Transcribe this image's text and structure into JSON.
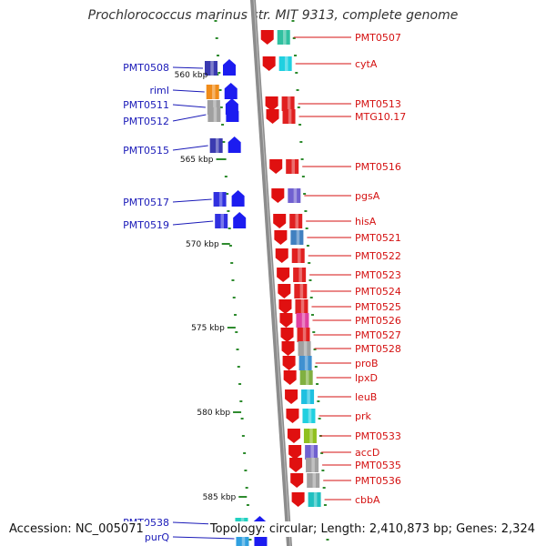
{
  "title": "Prochlorococcus marinus str. MIT 9313, complete genome",
  "footer": {
    "accession": "Accession: NC_005071",
    "topology": "Topology: circular; Length: 2,410,873 bp; Genes: 2,324"
  },
  "colors": {
    "backbone": "#8c8c8c",
    "left_label": "#1a1ab8",
    "right_label": "#d41111",
    "tick": "#2e8b2e"
  },
  "kbp_labels": [
    "560 kbp",
    "565 kbp",
    "570 kbp",
    "575 kbp",
    "580 kbp",
    "585 kbp"
  ],
  "left_genes": [
    {
      "label": "PMT0508",
      "color": "#3a3ab0",
      "arrow": "up"
    },
    {
      "label": "rimI",
      "color": "#f08c1a",
      "arrow": "up"
    },
    {
      "label": "PMT0511",
      "color": "#a0a0a0",
      "arrow": "up"
    },
    {
      "label": "PMT0512",
      "color": "#a0a0a0",
      "arrow": "up"
    },
    {
      "label": "PMT0515",
      "color": "#3a3ab0",
      "arrow": "up"
    },
    {
      "label": "PMT0517",
      "color": "#3030e0",
      "arrow": "up"
    },
    {
      "label": "PMT0519",
      "color": "#3030e0",
      "arrow": "up"
    },
    {
      "label": "PMT0538",
      "color": "#20d0c0",
      "arrow": "up"
    },
    {
      "label": "purQ",
      "color": "#30a0e0",
      "arrow": "up"
    }
  ],
  "right_genes": [
    {
      "label": "PMT0507",
      "color": "#30c0a0"
    },
    {
      "label": "cytA",
      "color": "#20d0e0"
    },
    {
      "label": "PMT0513",
      "color": "#e02020"
    },
    {
      "label": "MTG10.17",
      "color": "#e02020"
    },
    {
      "label": "PMT0516",
      "color": "#e02020"
    },
    {
      "label": "pgsA",
      "color": "#7060d0"
    },
    {
      "label": "hisA",
      "color": "#e02020"
    },
    {
      "label": "PMT0521",
      "color": "#4080c0"
    },
    {
      "label": "PMT0522",
      "color": "#e02020"
    },
    {
      "label": "PMT0523",
      "color": "#e02020"
    },
    {
      "label": "PMT0524",
      "color": "#e02020"
    },
    {
      "label": "PMT0525",
      "color": "#e02020"
    },
    {
      "label": "PMT0526",
      "color": "#e040a0"
    },
    {
      "label": "PMT0527",
      "color": "#e02020"
    },
    {
      "label": "PMT0528",
      "color": "#a0a0a0"
    },
    {
      "label": "proB",
      "color": "#4090d0"
    },
    {
      "label": "lpxD",
      "color": "#80b040"
    },
    {
      "label": "leuB",
      "color": "#20c0e0"
    },
    {
      "label": "prk",
      "color": "#20d0e0"
    },
    {
      "label": "PMT0533",
      "color": "#90c020"
    },
    {
      "label": "accD",
      "color": "#7060d0"
    },
    {
      "label": "PMT0535",
      "color": "#a0a0a0"
    },
    {
      "label": "PMT0536",
      "color": "#a0a0a0"
    },
    {
      "label": "cbbA",
      "color": "#20c0c0"
    }
  ]
}
